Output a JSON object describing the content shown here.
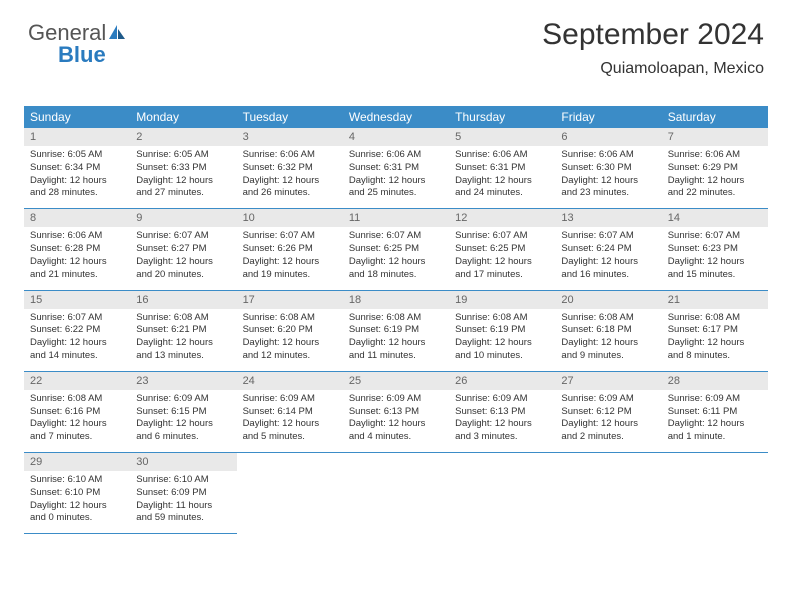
{
  "logo": {
    "text1": "General",
    "text2": "Blue"
  },
  "header": {
    "month": "September 2024",
    "location": "Quiamoloapan, Mexico"
  },
  "weekdays": [
    "Sunday",
    "Monday",
    "Tuesday",
    "Wednesday",
    "Thursday",
    "Friday",
    "Saturday"
  ],
  "colors": {
    "header_bg": "#3b8cc7",
    "daynum_bg": "#e9e9e9",
    "border": "#3b8cc7",
    "logo_blue": "#2a7bbf"
  },
  "days": [
    {
      "n": "1",
      "sr": "6:05 AM",
      "ss": "6:34 PM",
      "dl": "12 hours and 28 minutes."
    },
    {
      "n": "2",
      "sr": "6:05 AM",
      "ss": "6:33 PM",
      "dl": "12 hours and 27 minutes."
    },
    {
      "n": "3",
      "sr": "6:06 AM",
      "ss": "6:32 PM",
      "dl": "12 hours and 26 minutes."
    },
    {
      "n": "4",
      "sr": "6:06 AM",
      "ss": "6:31 PM",
      "dl": "12 hours and 25 minutes."
    },
    {
      "n": "5",
      "sr": "6:06 AM",
      "ss": "6:31 PM",
      "dl": "12 hours and 24 minutes."
    },
    {
      "n": "6",
      "sr": "6:06 AM",
      "ss": "6:30 PM",
      "dl": "12 hours and 23 minutes."
    },
    {
      "n": "7",
      "sr": "6:06 AM",
      "ss": "6:29 PM",
      "dl": "12 hours and 22 minutes."
    },
    {
      "n": "8",
      "sr": "6:06 AM",
      "ss": "6:28 PM",
      "dl": "12 hours and 21 minutes."
    },
    {
      "n": "9",
      "sr": "6:07 AM",
      "ss": "6:27 PM",
      "dl": "12 hours and 20 minutes."
    },
    {
      "n": "10",
      "sr": "6:07 AM",
      "ss": "6:26 PM",
      "dl": "12 hours and 19 minutes."
    },
    {
      "n": "11",
      "sr": "6:07 AM",
      "ss": "6:25 PM",
      "dl": "12 hours and 18 minutes."
    },
    {
      "n": "12",
      "sr": "6:07 AM",
      "ss": "6:25 PM",
      "dl": "12 hours and 17 minutes."
    },
    {
      "n": "13",
      "sr": "6:07 AM",
      "ss": "6:24 PM",
      "dl": "12 hours and 16 minutes."
    },
    {
      "n": "14",
      "sr": "6:07 AM",
      "ss": "6:23 PM",
      "dl": "12 hours and 15 minutes."
    },
    {
      "n": "15",
      "sr": "6:07 AM",
      "ss": "6:22 PM",
      "dl": "12 hours and 14 minutes."
    },
    {
      "n": "16",
      "sr": "6:08 AM",
      "ss": "6:21 PM",
      "dl": "12 hours and 13 minutes."
    },
    {
      "n": "17",
      "sr": "6:08 AM",
      "ss": "6:20 PM",
      "dl": "12 hours and 12 minutes."
    },
    {
      "n": "18",
      "sr": "6:08 AM",
      "ss": "6:19 PM",
      "dl": "12 hours and 11 minutes."
    },
    {
      "n": "19",
      "sr": "6:08 AM",
      "ss": "6:19 PM",
      "dl": "12 hours and 10 minutes."
    },
    {
      "n": "20",
      "sr": "6:08 AM",
      "ss": "6:18 PM",
      "dl": "12 hours and 9 minutes."
    },
    {
      "n": "21",
      "sr": "6:08 AM",
      "ss": "6:17 PM",
      "dl": "12 hours and 8 minutes."
    },
    {
      "n": "22",
      "sr": "6:08 AM",
      "ss": "6:16 PM",
      "dl": "12 hours and 7 minutes."
    },
    {
      "n": "23",
      "sr": "6:09 AM",
      "ss": "6:15 PM",
      "dl": "12 hours and 6 minutes."
    },
    {
      "n": "24",
      "sr": "6:09 AM",
      "ss": "6:14 PM",
      "dl": "12 hours and 5 minutes."
    },
    {
      "n": "25",
      "sr": "6:09 AM",
      "ss": "6:13 PM",
      "dl": "12 hours and 4 minutes."
    },
    {
      "n": "26",
      "sr": "6:09 AM",
      "ss": "6:13 PM",
      "dl": "12 hours and 3 minutes."
    },
    {
      "n": "27",
      "sr": "6:09 AM",
      "ss": "6:12 PM",
      "dl": "12 hours and 2 minutes."
    },
    {
      "n": "28",
      "sr": "6:09 AM",
      "ss": "6:11 PM",
      "dl": "12 hours and 1 minute."
    },
    {
      "n": "29",
      "sr": "6:10 AM",
      "ss": "6:10 PM",
      "dl": "12 hours and 0 minutes."
    },
    {
      "n": "30",
      "sr": "6:10 AM",
      "ss": "6:09 PM",
      "dl": "11 hours and 59 minutes."
    }
  ],
  "labels": {
    "sunrise": "Sunrise:",
    "sunset": "Sunset:",
    "daylight": "Daylight:"
  }
}
